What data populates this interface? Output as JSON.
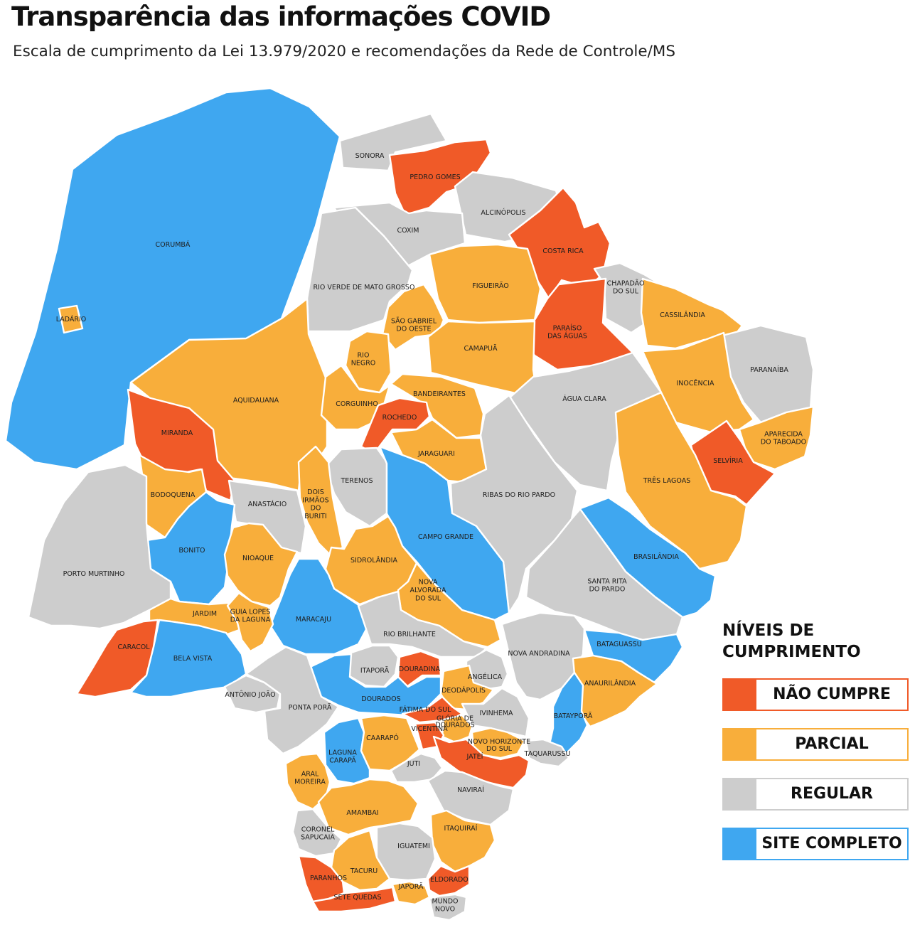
{
  "header": {
    "title": "Transparência das informações COVID",
    "subtitle": "Escala de cumprimento da Lei 13.979/2020 e recomendações da Rede de Controle/MS"
  },
  "colors": {
    "nao_cumpre": "#F05A28",
    "parcial": "#F8AE3B",
    "regular": "#CDCDCD",
    "site_completo": "#3FA7F0"
  },
  "legend": {
    "title": "NÍVEIS DE CUMPRIMENTO",
    "items": [
      {
        "key": "nao_cumpre",
        "label": "NÃO CUMPRE"
      },
      {
        "key": "parcial",
        "label": "PARCIAL"
      },
      {
        "key": "regular",
        "label": "REGULAR"
      },
      {
        "key": "site_completo",
        "label": "SITE COMPLETO"
      }
    ]
  },
  "municipalities": [
    {
      "name": "SONORA",
      "level": "regular"
    },
    {
      "name": "PEDRO GOMES",
      "level": "nao_cumpre"
    },
    {
      "name": "ALCINÓPOLIS",
      "level": "regular"
    },
    {
      "name": "COXIM",
      "level": "regular"
    },
    {
      "name": "CORUMBÁ",
      "level": "site_completo"
    },
    {
      "name": "LADÁRIO",
      "level": "parcial"
    },
    {
      "name": "COSTA RICA",
      "level": "nao_cumpre"
    },
    {
      "name": "RIO VERDE DE MATO GROSSO",
      "level": "regular"
    },
    {
      "name": "FIGUEIRÃO",
      "level": "parcial"
    },
    {
      "name": "CHAPADÃO DO SUL",
      "level": "regular"
    },
    {
      "name": "SÃO GABRIEL DO OESTE",
      "level": "parcial"
    },
    {
      "name": "CASSILÂNDIA",
      "level": "parcial"
    },
    {
      "name": "PARAÍSO DAS ÁGUAS",
      "level": "nao_cumpre"
    },
    {
      "name": "CAMAPUÃ",
      "level": "parcial"
    },
    {
      "name": "RIO NEGRO",
      "level": "parcial"
    },
    {
      "name": "PARANAÍBA",
      "level": "regular"
    },
    {
      "name": "INOCÊNCIA",
      "level": "parcial"
    },
    {
      "name": "BANDEIRANTES",
      "level": "parcial"
    },
    {
      "name": "AQUIDAUANA",
      "level": "parcial"
    },
    {
      "name": "ÁGUA CLARA",
      "level": "regular"
    },
    {
      "name": "CORGUINHO",
      "level": "parcial"
    },
    {
      "name": "ROCHEDO",
      "level": "nao_cumpre"
    },
    {
      "name": "MIRANDA",
      "level": "nao_cumpre"
    },
    {
      "name": "APARECIDA DO TABOADO",
      "level": "parcial"
    },
    {
      "name": "JARAGUARI",
      "level": "parcial"
    },
    {
      "name": "SELVÍRIA",
      "level": "nao_cumpre"
    },
    {
      "name": "TERENOS",
      "level": "regular"
    },
    {
      "name": "TRÊS LAGOAS",
      "level": "parcial"
    },
    {
      "name": "RIBAS DO RIO PARDO",
      "level": "regular"
    },
    {
      "name": "DOIS IRMÃOS DO BURITI",
      "level": "parcial"
    },
    {
      "name": "BODOQUENA",
      "level": "parcial"
    },
    {
      "name": "ANASTÁCIO",
      "level": "regular"
    },
    {
      "name": "CAMPO GRANDE",
      "level": "site_completo"
    },
    {
      "name": "BONITO",
      "level": "site_completo"
    },
    {
      "name": "BRASILÂNDIA",
      "level": "site_completo"
    },
    {
      "name": "NIOAQUE",
      "level": "parcial"
    },
    {
      "name": "SIDROLÂNDIA",
      "level": "parcial"
    },
    {
      "name": "PORTO MURTINHO",
      "level": "regular"
    },
    {
      "name": "NOVA ALVORADA DO SUL",
      "level": "parcial"
    },
    {
      "name": "SANTA RITA DO PARDO",
      "level": "regular"
    },
    {
      "name": "MARACAJU",
      "level": "site_completo"
    },
    {
      "name": "JARDIM",
      "level": "parcial"
    },
    {
      "name": "GUIA LOPES DA LAGUNA",
      "level": "parcial"
    },
    {
      "name": "RIO BRILHANTE",
      "level": "regular"
    },
    {
      "name": "CARACOL",
      "level": "nao_cumpre"
    },
    {
      "name": "NOVA ANDRADINA",
      "level": "regular"
    },
    {
      "name": "BATAGUASSU",
      "level": "site_completo"
    },
    {
      "name": "BELA VISTA",
      "level": "site_completo"
    },
    {
      "name": "ITAPORÃ",
      "level": "regular"
    },
    {
      "name": "DOURADINA",
      "level": "nao_cumpre"
    },
    {
      "name": "ANGÉLICA",
      "level": "regular"
    },
    {
      "name": "ANAURILÂNDIA",
      "level": "parcial"
    },
    {
      "name": "DEODÁPOLIS",
      "level": "parcial"
    },
    {
      "name": "ANTÔNIO JOÃO",
      "level": "regular"
    },
    {
      "name": "DOURADOS",
      "level": "site_completo"
    },
    {
      "name": "PONTA PORÃ",
      "level": "regular"
    },
    {
      "name": "FÁTIMA DO SUL",
      "level": "nao_cumpre"
    },
    {
      "name": "IVINHEMA",
      "level": "regular"
    },
    {
      "name": "GLÓRIA DE DOURADOS",
      "level": "parcial"
    },
    {
      "name": "BATAYPORÃ",
      "level": "site_completo"
    },
    {
      "name": "VICENTINA",
      "level": "nao_cumpre"
    },
    {
      "name": "LAGUNA CARAPÃ",
      "level": "site_completo"
    },
    {
      "name": "CAARAPÓ",
      "level": "parcial"
    },
    {
      "name": "NOVO HORIZONTE DO SUL",
      "level": "parcial"
    },
    {
      "name": "TAQUARUSSU",
      "level": "regular"
    },
    {
      "name": "JATEÍ",
      "level": "nao_cumpre"
    },
    {
      "name": "JUTI",
      "level": "regular"
    },
    {
      "name": "ARAL MOREIRA",
      "level": "parcial"
    },
    {
      "name": "NAVIRAÍ",
      "level": "regular"
    },
    {
      "name": "AMAMBAI",
      "level": "parcial"
    },
    {
      "name": "CORONEL SAPUCAIA",
      "level": "regular"
    },
    {
      "name": "ITAQUIRAÍ",
      "level": "parcial"
    },
    {
      "name": "IGUATEMI",
      "level": "regular"
    },
    {
      "name": "TACURU",
      "level": "parcial"
    },
    {
      "name": "PARANHOS",
      "level": "nao_cumpre"
    },
    {
      "name": "ELDORADO",
      "level": "nao_cumpre"
    },
    {
      "name": "JAPORÃ",
      "level": "parcial"
    },
    {
      "name": "SETE QUEDAS",
      "level": "nao_cumpre"
    },
    {
      "name": "MUNDO NOVO",
      "level": "regular"
    }
  ]
}
